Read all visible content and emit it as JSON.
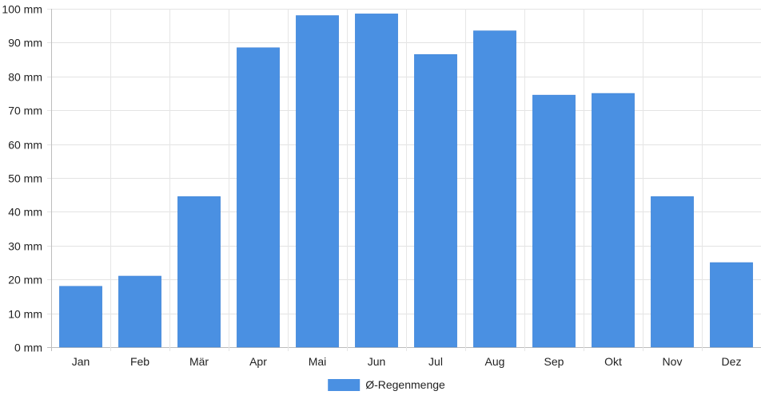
{
  "chart_data": {
    "type": "bar",
    "categories": [
      "Jan",
      "Feb",
      "Mär",
      "Apr",
      "Mai",
      "Jun",
      "Jul",
      "Aug",
      "Sep",
      "Okt",
      "Nov",
      "Dez"
    ],
    "series": [
      {
        "name": "Ø-Regenmenge",
        "values": [
          18,
          21,
          44.5,
          88.5,
          98,
          98.5,
          86.5,
          93.5,
          74.5,
          75,
          44.5,
          25
        ],
        "color": "#4a90e2"
      }
    ],
    "y_ticks": [
      "0 mm",
      "10 mm",
      "20 mm",
      "30 mm",
      "40 mm",
      "50 mm",
      "60 mm",
      "70 mm",
      "80 mm",
      "90 mm",
      "100 mm"
    ],
    "unit": "mm",
    "ylim": [
      0,
      100
    ],
    "grid": true,
    "legend_position": "bottom-center",
    "title": "",
    "xlabel": "",
    "ylabel": ""
  }
}
